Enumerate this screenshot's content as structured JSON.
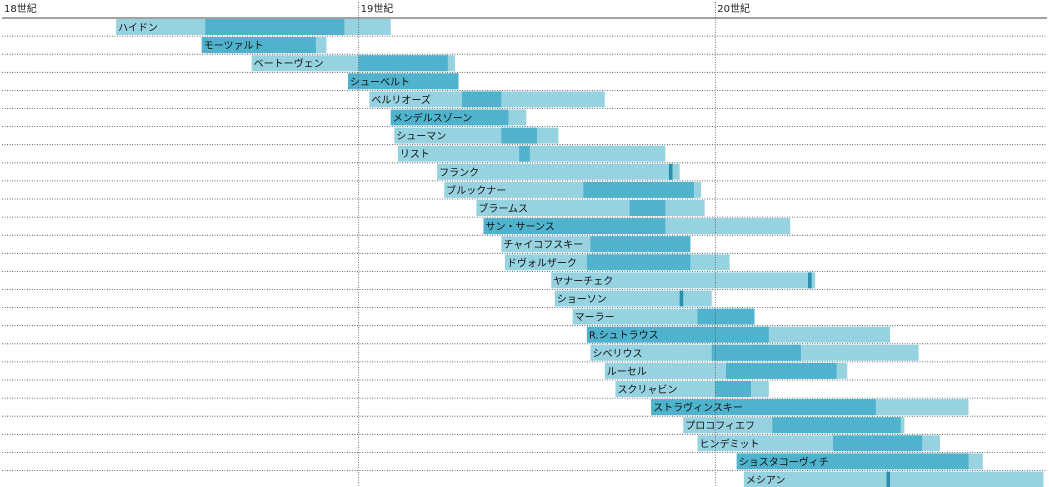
{
  "chart_data": {
    "type": "timeline",
    "title": "",
    "xlabel": "",
    "ylabel": "",
    "xlim": [
      1700,
      1993
    ],
    "x_unit": "year",
    "gridlines": "dotted row separators",
    "century_markers": [
      {
        "year": 1700,
        "label": "18世紀"
      },
      {
        "year": 1800,
        "label": "19世紀"
      },
      {
        "year": 1900,
        "label": "20世紀"
      }
    ],
    "colors": {
      "life": "#96d2e0",
      "active": "#4fb3cd",
      "marker": "#2b8fb0",
      "century_line": "#555555",
      "row_line": "#444444",
      "text": "#111111"
    },
    "composers": [
      {
        "name": "ハイドン",
        "birth": 1732,
        "active_start": 1757,
        "active_end": 1796,
        "death": 1809
      },
      {
        "name": "モーツァルト",
        "birth": 1756,
        "active_start": 1756,
        "active_end": 1788,
        "death": 1791
      },
      {
        "name": "ベートーヴェン",
        "birth": 1770,
        "active_start": 1800,
        "active_end": 1825,
        "death": 1827
      },
      {
        "name": "シューベルト",
        "birth": 1797,
        "active_start": 1797,
        "active_end": 1828,
        "death": 1828
      },
      {
        "name": "ベルリオーズ",
        "birth": 1803,
        "active_start": 1829,
        "active_end": 1840,
        "death": 1869
      },
      {
        "name": "メンデルスゾーン",
        "birth": 1809,
        "active_start": 1809,
        "active_end": 1842,
        "death": 1847
      },
      {
        "name": "シューマン",
        "birth": 1810,
        "active_start": 1840,
        "active_end": 1850,
        "death": 1856
      },
      {
        "name": "リスト",
        "birth": 1811,
        "active_start": 1845,
        "active_end": 1848,
        "death": 1886
      },
      {
        "name": "フランク",
        "birth": 1822,
        "active_start": 1887,
        "active_end": 1888,
        "death": 1890
      },
      {
        "name": "ブルックナー",
        "birth": 1824,
        "active_start": 1863,
        "active_end": 1894,
        "death": 1896
      },
      {
        "name": "ブラームス",
        "birth": 1833,
        "active_start": 1876,
        "active_end": 1886,
        "death": 1897
      },
      {
        "name": "サン・サーンス",
        "birth": 1835,
        "active_start": 1835,
        "active_end": 1886,
        "death": 1921
      },
      {
        "name": "チャイコフスキー",
        "birth": 1840,
        "active_start": 1865,
        "active_end": 1893,
        "death": 1893
      },
      {
        "name": "ドヴォルザーク",
        "birth": 1841,
        "active_start": 1864,
        "active_end": 1893,
        "death": 1904
      },
      {
        "name": "ヤナーチェク",
        "birth": 1854,
        "active_start": 1926,
        "active_end": 1927,
        "death": 1928
      },
      {
        "name": "ショーソン",
        "birth": 1855,
        "active_start": 1890,
        "active_end": 1891,
        "death": 1899
      },
      {
        "name": "マーラー",
        "birth": 1860,
        "active_start": 1895,
        "active_end": 1911,
        "death": 1911
      },
      {
        "name": "R.シュトラウス",
        "birth": 1864,
        "active_start": 1864,
        "active_end": 1915,
        "death": 1949
      },
      {
        "name": "シベリウス",
        "birth": 1865,
        "active_start": 1899,
        "active_end": 1924,
        "death": 1957
      },
      {
        "name": "ルーセル",
        "birth": 1869,
        "active_start": 1903,
        "active_end": 1934,
        "death": 1937
      },
      {
        "name": "スクリャビン",
        "birth": 1872,
        "active_start": 1900,
        "active_end": 1910,
        "death": 1915
      },
      {
        "name": "ストラヴィンスキー",
        "birth": 1882,
        "active_start": 1882,
        "active_end": 1945,
        "death": 1971
      },
      {
        "name": "プロコフィエフ",
        "birth": 1891,
        "active_start": 1916,
        "active_end": 1952,
        "death": 1953
      },
      {
        "name": "ヒンデミット",
        "birth": 1895,
        "active_start": 1933,
        "active_end": 1958,
        "death": 1963
      },
      {
        "name": "ショスタコーヴィチ",
        "birth": 1906,
        "active_start": 1906,
        "active_end": 1971,
        "death": 1975
      },
      {
        "name": "メシアン",
        "birth": 1908,
        "active_start": 1948,
        "active_end": 1949,
        "death": 1992
      }
    ]
  }
}
